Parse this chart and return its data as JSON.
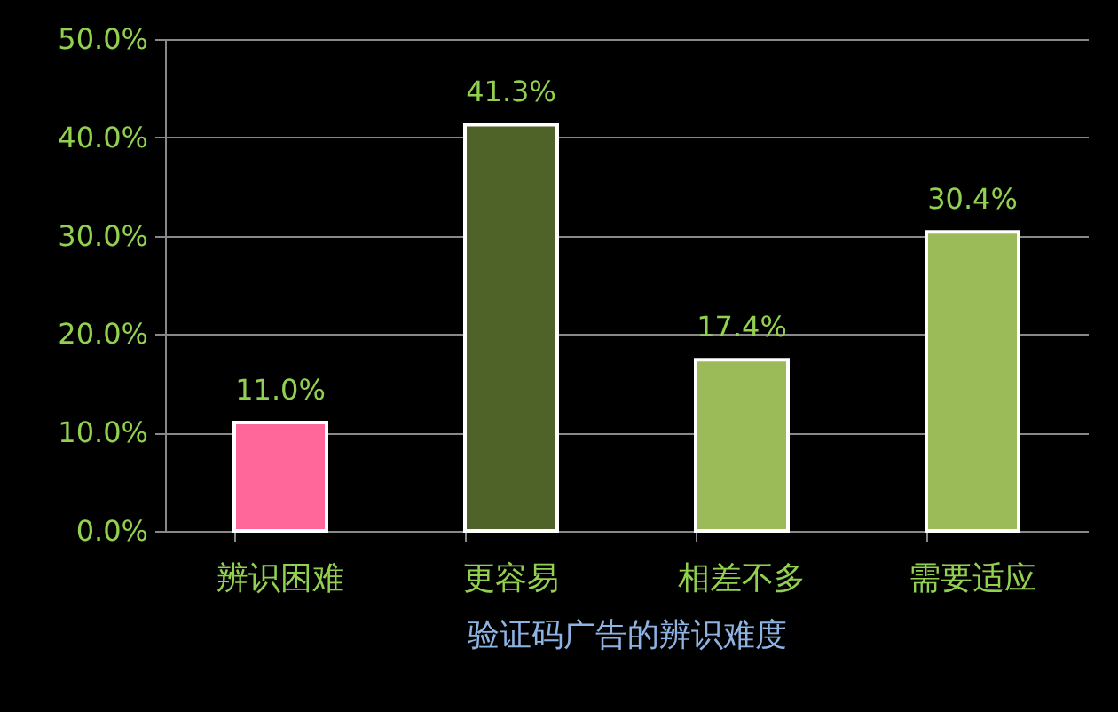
{
  "chart_data": {
    "type": "bar",
    "xlabel": "验证码广告的辨识难度",
    "categories": [
      "辨识困难",
      "更容易",
      "相差不多",
      "需要适应"
    ],
    "values": [
      11.0,
      41.3,
      17.4,
      30.4
    ],
    "colors": [
      "#ff6699",
      "#4f6228",
      "#9bbb59",
      "#9bbb59"
    ],
    "value_labels": [
      "11.0%",
      "41.3%",
      "17.4%",
      "30.4%"
    ],
    "ylim": [
      0,
      50
    ],
    "yticks": [
      {
        "value": 0,
        "label": "0.0%"
      },
      {
        "value": 10,
        "label": "10.0%"
      },
      {
        "value": 20,
        "label": "20.0%"
      },
      {
        "value": 30,
        "label": "30.0%"
      },
      {
        "value": 40,
        "label": "40.0%"
      },
      {
        "value": 50,
        "label": "50.0%"
      }
    ],
    "grid": "y",
    "legend": false
  }
}
